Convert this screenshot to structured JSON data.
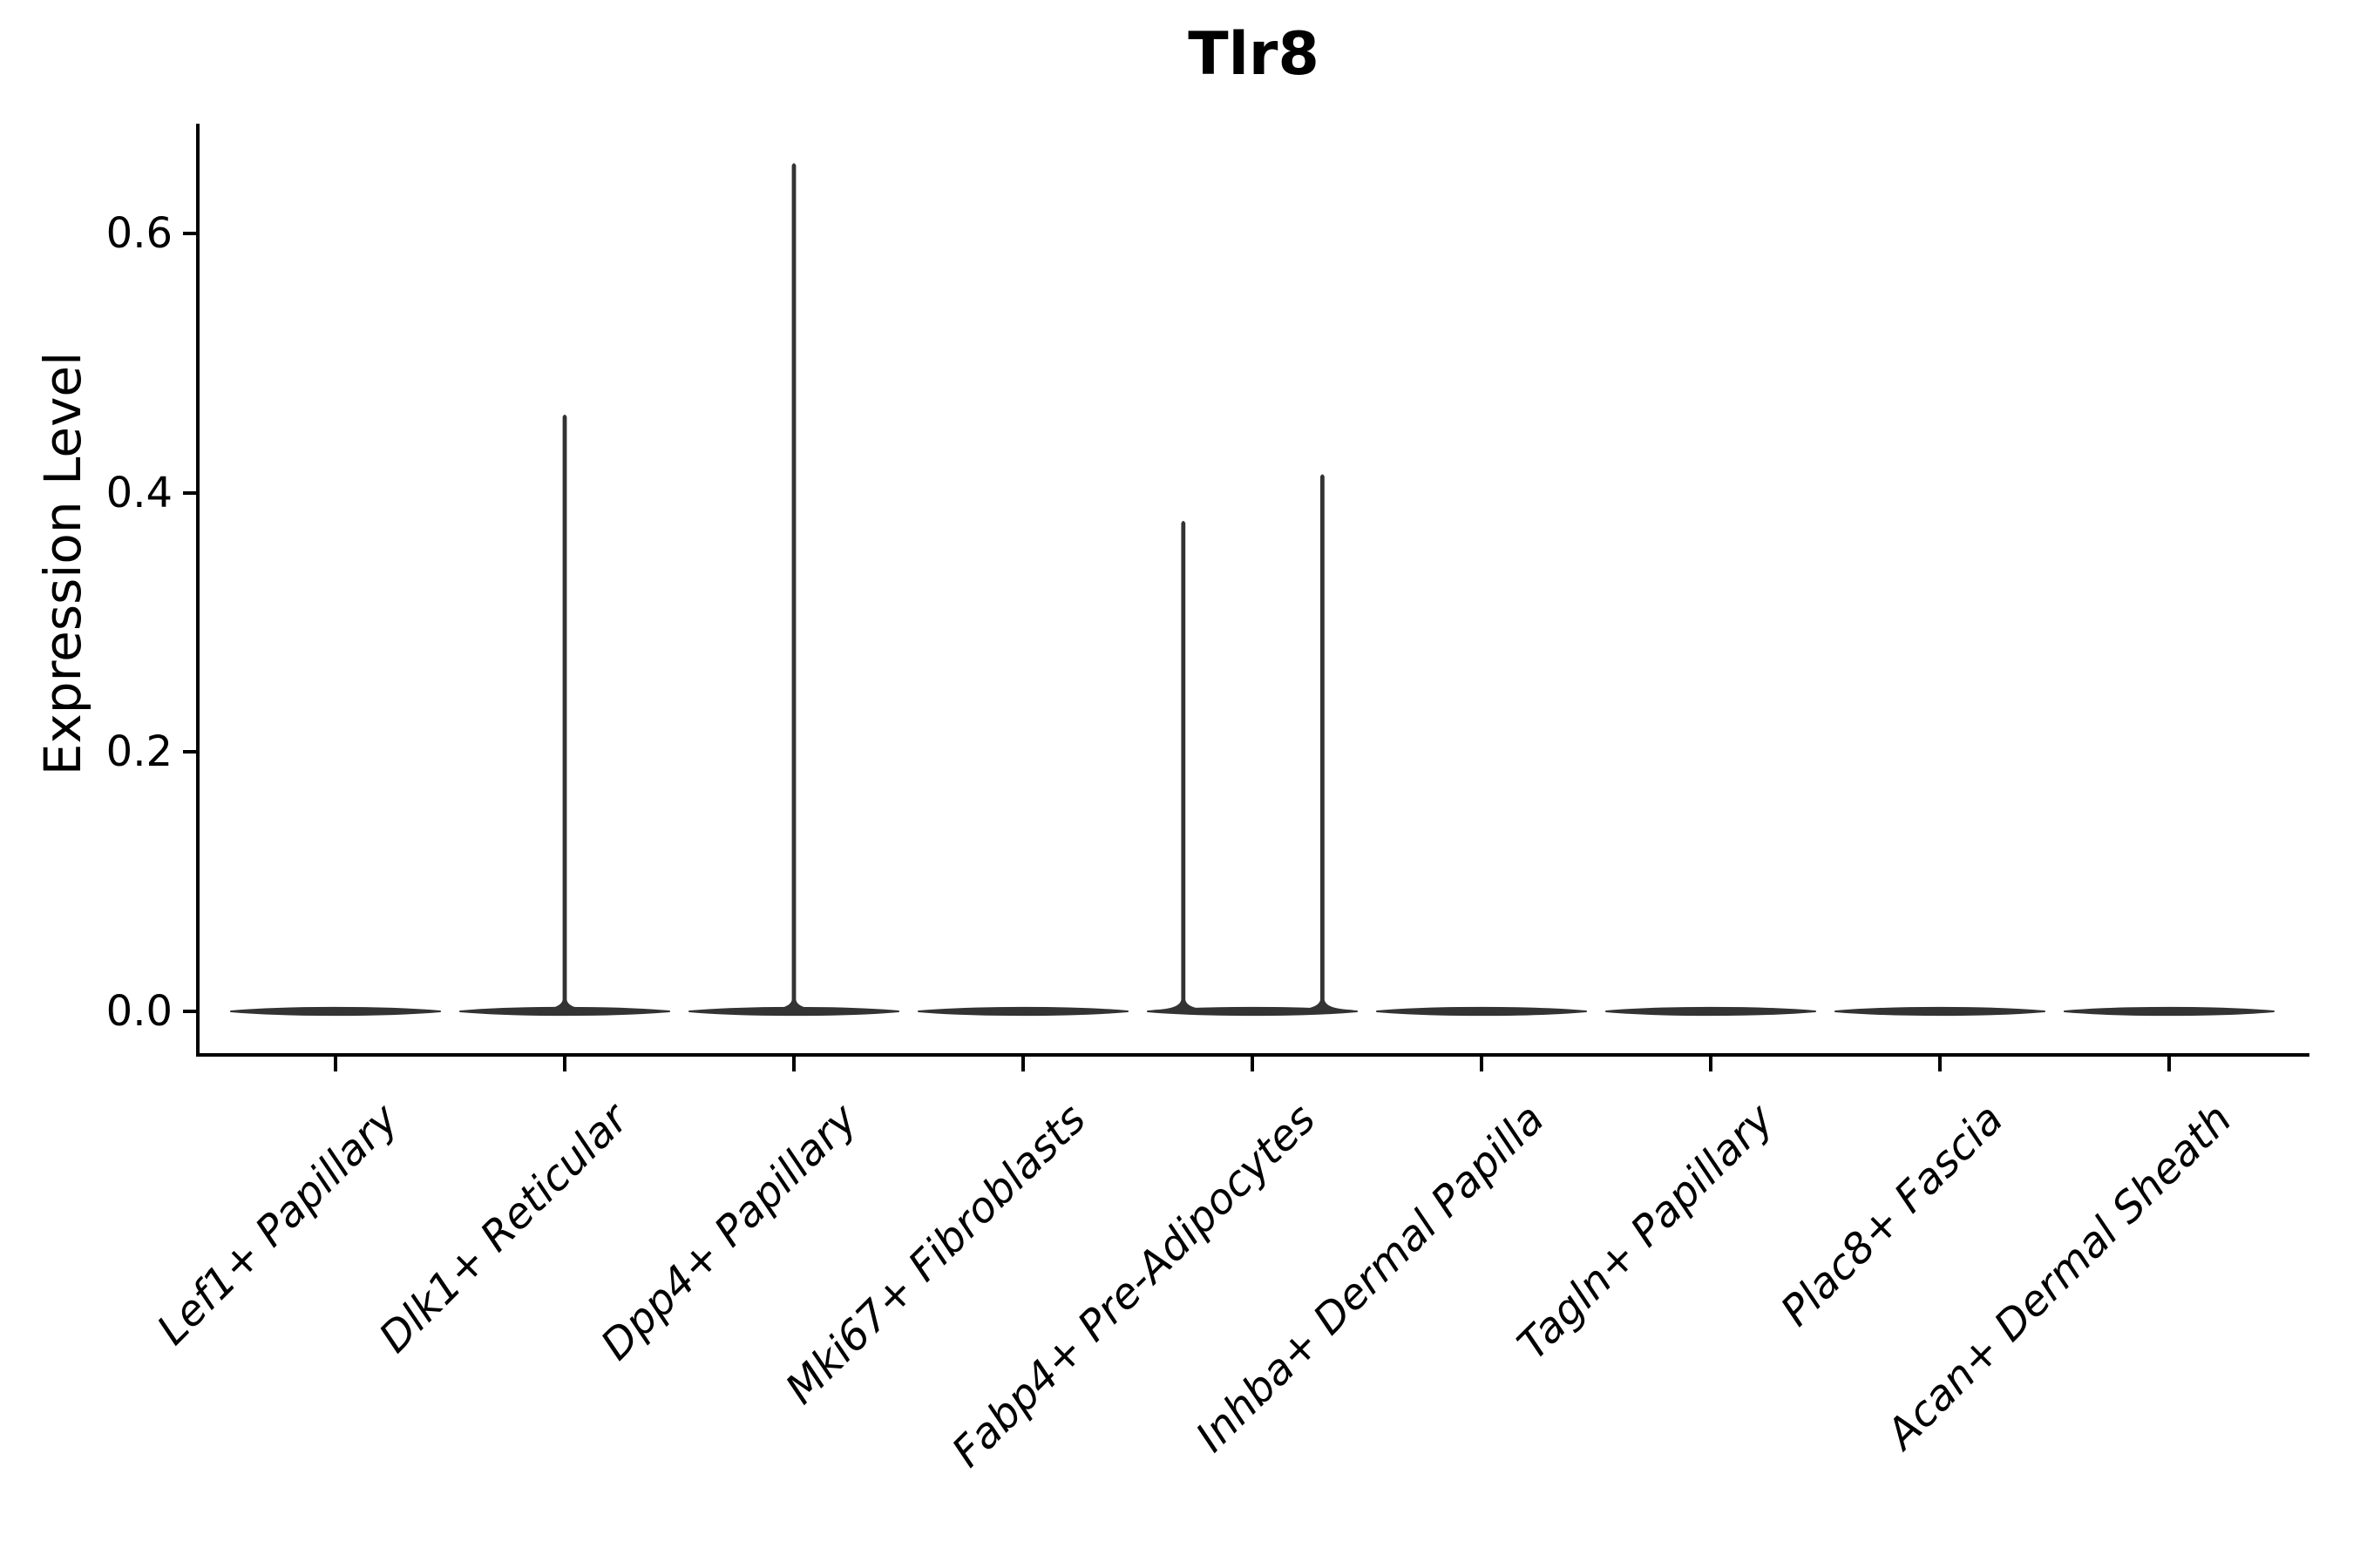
{
  "chart_data": {
    "type": "violin",
    "title": "Tlr8",
    "ylabel": "Expression Level",
    "xlabel": "",
    "ylim": [
      0.0,
      0.685
    ],
    "yticks": [
      0.0,
      0.2,
      0.4,
      0.6
    ],
    "ytick_labels": [
      "0.0",
      "0.2",
      "0.4",
      "0.6"
    ],
    "grid": false,
    "legend": "none",
    "background_color": "#ffffff",
    "axis_color": "#000000",
    "violin_color": "#333333",
    "categories": [
      {
        "label": "Lef1+ Papillary",
        "baseline": 0.0,
        "spikes": []
      },
      {
        "label": "Dlk1+ Reticular",
        "baseline": 0.0,
        "spikes": [
          {
            "offset_frac": 0.0,
            "value": 0.46
          }
        ]
      },
      {
        "label": "Dpp4+ Papillary",
        "baseline": 0.0,
        "spikes": [
          {
            "offset_frac": 0.0,
            "value": 0.654
          }
        ]
      },
      {
        "label": "Mki67+ Fibroblasts",
        "baseline": 0.0,
        "spikes": []
      },
      {
        "label": "Fabp4+ Pre-Adipocytes",
        "baseline": 0.0,
        "spikes": [
          {
            "offset_frac": -0.66,
            "value": 0.378
          },
          {
            "offset_frac": 0.67,
            "value": 0.414
          }
        ]
      },
      {
        "label": "Inhba+ Dermal Papilla",
        "baseline": 0.0,
        "spikes": []
      },
      {
        "label": "Tagln+ Papillary",
        "baseline": 0.0,
        "spikes": []
      },
      {
        "label": "Plac8+ Fascia",
        "baseline": 0.0,
        "spikes": []
      },
      {
        "label": "Acan+ Dermal Sheath",
        "baseline": 0.0,
        "spikes": []
      }
    ]
  }
}
